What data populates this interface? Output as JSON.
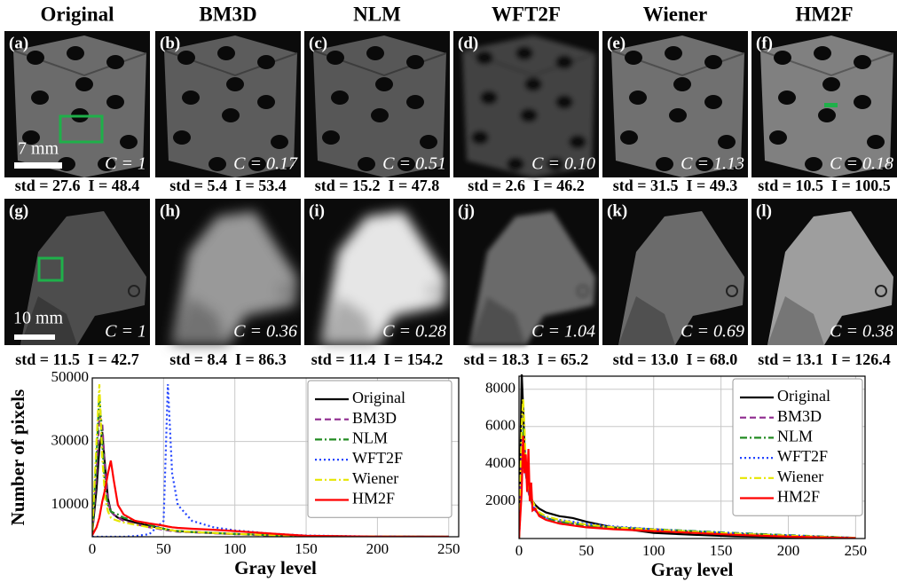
{
  "column_headers": [
    "Original",
    "BM3D",
    "NLM",
    "WFT2F",
    "Wiener",
    "HM2F"
  ],
  "rows": [
    {
      "scale_bar": "7 mm",
      "panels": [
        {
          "label": "(a)",
          "c": "C = 1",
          "stats": "std = 27.6  I = 48.4"
        },
        {
          "label": "(b)",
          "c": "C = 0.17",
          "stats": "std = 5.4  I = 53.4"
        },
        {
          "label": "(c)",
          "c": "C = 0.51",
          "stats": "std = 15.2  I = 47.8"
        },
        {
          "label": "(d)",
          "c": "C = 0.10",
          "stats": "std = 2.6  I = 46.2"
        },
        {
          "label": "(e)",
          "c": "C = 1.13",
          "stats": "std = 31.5  I = 49.3"
        },
        {
          "label": "(f)",
          "c": "C = 0.18",
          "stats": "std = 10.5  I = 100.5"
        }
      ]
    },
    {
      "scale_bar": "10 mm",
      "panels": [
        {
          "label": "(g)",
          "c": "C = 1",
          "stats": "std = 11.5  I = 42.7"
        },
        {
          "label": "(h)",
          "c": "C = 0.36",
          "stats": "std = 8.4  I = 86.3"
        },
        {
          "label": "(i)",
          "c": "C = 0.28",
          "stats": "std = 11.4  I = 154.2"
        },
        {
          "label": "(j)",
          "c": "C = 1.04",
          "stats": "std = 18.3  I = 65.2"
        },
        {
          "label": "(k)",
          "c": "C = 0.69",
          "stats": "std = 13.0  I = 68.0"
        },
        {
          "label": "(l)",
          "c": "C = 0.38",
          "stats": "std = 13.1  I = 126.4"
        }
      ]
    }
  ],
  "chart_data": [
    {
      "type": "line",
      "y_label": "Number of pixels",
      "x_label": "Gray level",
      "grid": true,
      "legend": "upper right",
      "xlim": [
        0,
        257
      ],
      "ylim": [
        0,
        50000
      ],
      "xticks": [
        0,
        50,
        100,
        150,
        200,
        250
      ],
      "yticks": [
        10000,
        30000,
        50000
      ],
      "x": [
        0,
        3,
        5,
        7,
        9,
        11,
        13,
        15,
        18,
        22,
        30,
        40,
        50,
        53,
        56,
        60,
        70,
        85,
        100,
        125,
        150,
        200,
        250
      ],
      "series": [
        {
          "name": "Original",
          "color": "#000000",
          "style": "solid",
          "values": [
            1500,
            15000,
            28000,
            33000,
            22000,
            12000,
            8000,
            7000,
            6000,
            5500,
            4500,
            3500,
            2500,
            2200,
            2000,
            1800,
            1500,
            1200,
            900,
            500,
            200,
            50,
            0
          ]
        },
        {
          "name": "BM3D",
          "color": "#8e2a8e",
          "style": "dashed",
          "values": [
            1000,
            20000,
            38000,
            36000,
            20000,
            11000,
            8000,
            7000,
            6000,
            5000,
            4000,
            3000,
            2200,
            2000,
            1800,
            1600,
            1400,
            1100,
            800,
            400,
            150,
            30,
            0
          ]
        },
        {
          "name": "NLM",
          "color": "#228b22",
          "style": "dashdot",
          "values": [
            1000,
            25000,
            45000,
            30000,
            15000,
            10000,
            8000,
            7500,
            7000,
            6000,
            5000,
            3800,
            2500,
            2200,
            2000,
            1800,
            1500,
            1200,
            900,
            500,
            200,
            50,
            0
          ]
        },
        {
          "name": "WFT2F",
          "color": "#2244ff",
          "style": "dotted",
          "values": [
            0,
            0,
            0,
            0,
            0,
            0,
            0,
            0,
            0,
            0,
            200,
            800,
            5000,
            48000,
            20000,
            10000,
            5000,
            3000,
            2000,
            1000,
            400,
            50,
            0
          ]
        },
        {
          "name": "Wiener",
          "color": "#e6e600",
          "style": "dashdot",
          "values": [
            2000,
            30000,
            48000,
            25000,
            12000,
            8000,
            6000,
            5500,
            5000,
            4500,
            3800,
            3000,
            2500,
            2200,
            2000,
            1800,
            1500,
            1200,
            900,
            500,
            200,
            50,
            0
          ]
        },
        {
          "name": "HM2F",
          "color": "#ff0000",
          "style": "solid",
          "values": [
            500,
            3000,
            6000,
            11000,
            15000,
            20000,
            24000,
            18000,
            10000,
            7000,
            5000,
            4200,
            3500,
            3200,
            3000,
            2800,
            2500,
            2200,
            1800,
            1000,
            300,
            50,
            0
          ]
        }
      ]
    },
    {
      "type": "line",
      "x_label": "Gray level",
      "grid": true,
      "legend": "upper right",
      "xlim": [
        0,
        257
      ],
      "ylim": [
        0,
        8700
      ],
      "xticks": [
        0,
        50,
        100,
        150,
        200,
        250
      ],
      "yticks": [
        2000,
        4000,
        6000,
        8000
      ],
      "x": [
        0,
        2,
        3,
        4,
        5,
        6,
        7,
        8,
        9,
        10,
        12,
        15,
        20,
        30,
        40,
        50,
        70,
        100,
        130,
        160,
        200,
        250
      ],
      "series": [
        {
          "name": "Original",
          "color": "#000000",
          "style": "solid",
          "values": [
            0,
            8900,
            7000,
            5000,
            3500,
            3000,
            2600,
            2400,
            2200,
            2000,
            1800,
            1600,
            1400,
            1200,
            1100,
            900,
            600,
            300,
            200,
            120,
            60,
            10
          ]
        },
        {
          "name": "BM3D",
          "color": "#8e2a8e",
          "style": "dashed",
          "values": [
            0,
            5000,
            5500,
            4500,
            3500,
            3000,
            2500,
            2200,
            2000,
            1800,
            1500,
            1300,
            1100,
            900,
            800,
            700,
            600,
            500,
            350,
            250,
            150,
            30
          ]
        },
        {
          "name": "NLM",
          "color": "#228b22",
          "style": "dashdot",
          "values": [
            0,
            4000,
            6000,
            5000,
            3800,
            3000,
            2600,
            2200,
            2000,
            1800,
            1500,
            1300,
            1100,
            900,
            800,
            700,
            600,
            500,
            400,
            300,
            180,
            40
          ]
        },
        {
          "name": "WFT2F",
          "color": "#2244ff",
          "style": "dotted",
          "values": [
            0,
            3000,
            4500,
            4200,
            3500,
            3000,
            2600,
            2300,
            2000,
            1800,
            1500,
            1300,
            1100,
            1000,
            900,
            800,
            650,
            500,
            380,
            280,
            160,
            40
          ]
        },
        {
          "name": "Wiener",
          "color": "#e6e600",
          "style": "dashdot",
          "values": [
            0,
            6000,
            7500,
            6000,
            4000,
            3200,
            2800,
            2500,
            2200,
            2000,
            1700,
            1400,
            1200,
            1000,
            850,
            750,
            600,
            480,
            360,
            260,
            150,
            30
          ]
        },
        {
          "name": "HM2F",
          "color": "#ff0000",
          "style": "solid",
          "values": [
            0,
            2500,
            5500,
            3500,
            4500,
            2500,
            4800,
            2000,
            3000,
            1500,
            1600,
            1200,
            1000,
            800,
            700,
            600,
            500,
            400,
            300,
            200,
            100,
            20
          ]
        }
      ]
    }
  ]
}
